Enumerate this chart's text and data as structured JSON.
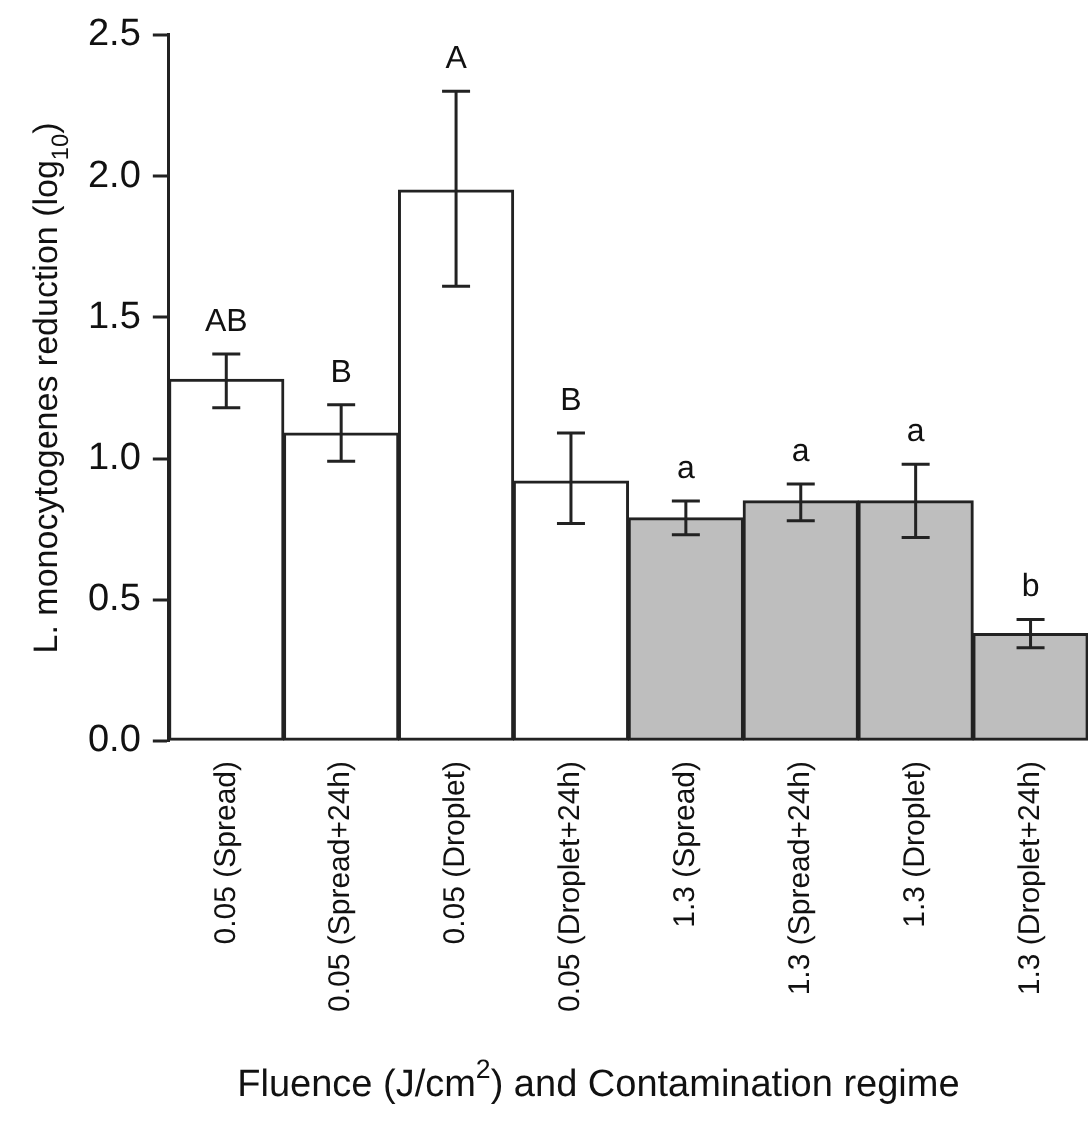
{
  "chart_data": {
    "type": "bar",
    "xlabel": "Fluence (J/cm$^{2}$) and Contamination regime",
    "ylabel": "L. monocytogenes reduction (log$_{10}$)",
    "categories": [
      "0.05 (Spread)",
      "0.05 (Spread+24h)",
      "0.05 (Droplet)",
      "0.05 (Droplet+24h)",
      "1.3 (Spread)",
      "1.3 (Spread+24h)",
      "1.3 (Droplet)",
      "1.3 (Droplet+24h)"
    ],
    "values": [
      1.28,
      1.09,
      1.95,
      0.92,
      0.79,
      0.85,
      0.85,
      0.38
    ],
    "colors": [
      "#ffffff",
      "#ffffff",
      "#ffffff",
      "#ffffff",
      "#bebebe",
      "#bebebe",
      "#bebebe",
      "#bebebe"
    ],
    "errors": [
      [
        1.18,
        1.37
      ],
      [
        0.99,
        1.19
      ],
      [
        1.61,
        2.3
      ],
      [
        0.77,
        1.09
      ],
      [
        0.73,
        0.85
      ],
      [
        0.78,
        0.91
      ],
      [
        0.72,
        0.98
      ],
      [
        0.33,
        0.43
      ]
    ],
    "ylim": [
      0,
      2.5
    ],
    "yticks": [
      {
        "value": 0,
        "label": "0.0"
      },
      {
        "value": 0.5,
        "label": "0.5"
      },
      {
        "value": 1,
        "label": "1.0"
      },
      {
        "value": 1.5,
        "label": "1.5"
      },
      {
        "value": 2,
        "label": "2.0"
      },
      {
        "value": 2.5,
        "label": "2.5"
      }
    ],
    "annotations": [
      {
        "text": "AB",
        "x": "0.05 (Spread)",
        "y": 1.37
      },
      {
        "text": "B",
        "x": "0.05 (Spread+24h)",
        "y": 1.19
      },
      {
        "text": "A",
        "x": "0.05 (Droplet)",
        "y": 2.3
      },
      {
        "text": "B",
        "x": "0.05 (Droplet+24h)",
        "y": 1.09
      },
      {
        "text": "a",
        "x": "1.3 (Spread)",
        "y": 0.85
      },
      {
        "text": "a",
        "x": "1.3 (Spread+24h)",
        "y": 0.91
      },
      {
        "text": "a",
        "x": "1.3 (Droplet)",
        "y": 0.98
      },
      {
        "text": "b",
        "x": "1.3 (Droplet+24h)",
        "y": 0.43
      }
    ],
    "grid": false,
    "legend": false
  }
}
